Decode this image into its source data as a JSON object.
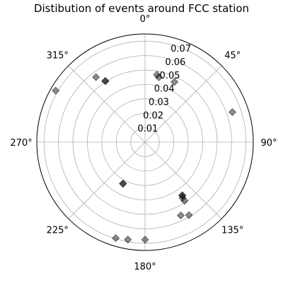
{
  "chart_data": {
    "type": "scatter",
    "projection": "polar",
    "title": "Distibution of events around FCC station",
    "theta_zero": "N",
    "theta_direction": "clockwise",
    "angle_ticks": [
      "0°",
      "45°",
      "90°",
      "135°",
      "180°",
      "225°",
      "270°",
      "315°"
    ],
    "r_ticks": [
      "0.01",
      "0.02",
      "0.03",
      "0.04",
      "0.05",
      "0.06",
      "0.07"
    ],
    "r_tick_values": [
      0.01,
      0.02,
      0.03,
      0.04,
      0.05,
      0.06,
      0.07
    ],
    "rlim": [
      0,
      0.075
    ],
    "grid": true,
    "marker": "diamond",
    "marker_color": "#000000",
    "marker_alpha": 0.45,
    "points": [
      {
        "theta": 10,
        "r": 0.0475
      },
      {
        "theta": 12,
        "r": 0.046
      },
      {
        "theta": 26,
        "r": 0.0465
      },
      {
        "theta": 71,
        "r": 0.064
      },
      {
        "theta": 145,
        "r": 0.045
      },
      {
        "theta": 145,
        "r": 0.045
      },
      {
        "theta": 146,
        "r": 0.0465
      },
      {
        "theta": 146,
        "r": 0.049
      },
      {
        "theta": 149,
        "r": 0.059
      },
      {
        "theta": 154,
        "r": 0.0565
      },
      {
        "theta": 180,
        "r": 0.0675
      },
      {
        "theta": 190,
        "r": 0.0685
      },
      {
        "theta": 197,
        "r": 0.0695
      },
      {
        "theta": 208,
        "r": 0.0325
      },
      {
        "theta": 208,
        "r": 0.0325
      },
      {
        "theta": 300,
        "r": 0.0715
      },
      {
        "theta": 323,
        "r": 0.0565
      },
      {
        "theta": 327,
        "r": 0.0505
      },
      {
        "theta": 327,
        "r": 0.0505
      }
    ]
  }
}
